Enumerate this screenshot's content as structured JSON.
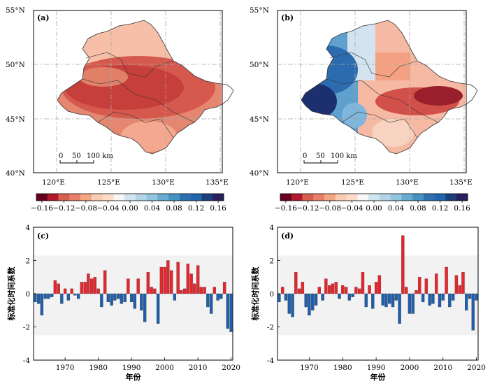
{
  "colors": {
    "positive_bar": "#e8252c",
    "negative_bar": "#1f5eab",
    "frame": "#000000",
    "grid": "#a8a8a8",
    "colorbar": [
      "#67001f",
      "#b2182b",
      "#d6604d",
      "#e7806a",
      "#f4a582",
      "#f9cdb3",
      "#fddbc7",
      "#f7f7f7",
      "#d1e5f0",
      "#b3d5e8",
      "#92c5de",
      "#6aabd2",
      "#4393c3",
      "#2d6fb1",
      "#2166ac",
      "#1a3f7a",
      "#2a1f5c"
    ]
  },
  "maps": [
    {
      "label": "(a)",
      "lat_ticks": [
        "55°N",
        "50°N",
        "45°N",
        "40°N"
      ],
      "lon_ticks": [
        "120°E",
        "125°E",
        "130°E",
        "135°E"
      ],
      "scale_bar": [
        "0",
        "50",
        "100 km"
      ]
    },
    {
      "label": "(b)",
      "lat_ticks": [
        "55°N",
        "50°N",
        "45°N",
        "40°N"
      ],
      "lon_ticks": [
        "120°E",
        "125°E",
        "130°E",
        "135°E"
      ],
      "scale_bar": [
        "0",
        "50",
        "100 km"
      ]
    }
  ],
  "colorbar_ticks": [
    "−0.16",
    "−0.12",
    "−0.08",
    "−0.04",
    "0.00",
    "0.04",
    "0.08",
    "0.12",
    "0.16"
  ],
  "chart_data": [
    {
      "type": "bar",
      "label": "(c)",
      "xlabel": "年份",
      "ylabel": "标准化时间系数",
      "xlim": [
        1961,
        2020
      ],
      "ylim": [
        -4,
        4
      ],
      "x_ticks": [
        1970,
        1980,
        1990,
        2000,
        2010,
        2020
      ],
      "y_ticks": [
        4,
        2,
        0,
        -2,
        -4
      ],
      "x": [
        1961,
        1962,
        1963,
        1964,
        1965,
        1966,
        1967,
        1968,
        1969,
        1970,
        1971,
        1972,
        1973,
        1974,
        1975,
        1976,
        1977,
        1978,
        1979,
        1980,
        1981,
        1982,
        1983,
        1984,
        1985,
        1986,
        1987,
        1988,
        1989,
        1990,
        1991,
        1992,
        1993,
        1994,
        1995,
        1996,
        1997,
        1998,
        1999,
        2000,
        2001,
        2002,
        2003,
        2004,
        2005,
        2006,
        2007,
        2008,
        2009,
        2010,
        2011,
        2012,
        2013,
        2014,
        2015,
        2016,
        2017,
        2018,
        2019,
        2020
      ],
      "values": [
        -0.5,
        -0.6,
        -1.3,
        -0.3,
        -0.3,
        -0.2,
        0.8,
        0.6,
        -0.6,
        0.3,
        -0.4,
        0.3,
        -0.1,
        -0.3,
        0.7,
        0.7,
        1.2,
        0.9,
        1.0,
        0.3,
        -0.8,
        1.4,
        -0.5,
        -0.7,
        -0.4,
        -0.3,
        -0.6,
        -0.5,
        0.9,
        -0.5,
        -0.9,
        0.9,
        -1.0,
        -1.7,
        1.3,
        0.4,
        0.3,
        -1.8,
        1.6,
        1.6,
        2.0,
        1.4,
        -0.4,
        1.9,
        0.2,
        0.3,
        1.8,
        1.2,
        0.6,
        1.7,
        0.4,
        0.4,
        -0.8,
        -1.2,
        0.4,
        -0.4,
        -0.3,
        0.7,
        -2.1,
        -2.3
      ]
    },
    {
      "type": "bar",
      "label": "(d)",
      "xlabel": "年份",
      "ylabel": "标准化时间系数",
      "xlim": [
        1961,
        2020
      ],
      "ylim": [
        -4,
        4
      ],
      "x_ticks": [
        1970,
        1980,
        1990,
        2000,
        2010,
        2020
      ],
      "y_ticks": [
        4,
        2,
        0,
        -2,
        -4
      ],
      "x": [
        1961,
        1962,
        1963,
        1964,
        1965,
        1966,
        1967,
        1968,
        1969,
        1970,
        1971,
        1972,
        1973,
        1974,
        1975,
        1976,
        1977,
        1978,
        1979,
        1980,
        1981,
        1982,
        1983,
        1984,
        1985,
        1986,
        1987,
        1988,
        1989,
        1990,
        1991,
        1992,
        1993,
        1994,
        1995,
        1996,
        1997,
        1998,
        1999,
        2000,
        2001,
        2002,
        2003,
        2004,
        2005,
        2006,
        2007,
        2008,
        2009,
        2010,
        2011,
        2012,
        2013,
        2014,
        2015,
        2016,
        2017,
        2018,
        2019,
        2020
      ],
      "values": [
        -0.5,
        0.4,
        -0.4,
        -1.2,
        -1.4,
        1.3,
        0.3,
        0.7,
        -0.8,
        -1.3,
        -1.0,
        -0.7,
        0.4,
        -0.4,
        0.9,
        0.5,
        0.6,
        0.7,
        -0.3,
        0.5,
        0.4,
        -0.4,
        -0.2,
        0.4,
        0.3,
        1.3,
        -0.8,
        0.5,
        -0.9,
        0.7,
        1.1,
        -0.7,
        -0.8,
        -0.6,
        -0.8,
        -0.4,
        -1.8,
        3.5,
        0.4,
        -1.2,
        -1.2,
        0.2,
        1.0,
        -0.5,
        0.9,
        -0.7,
        -0.6,
        1.2,
        -0.8,
        -0.4,
        1.6,
        -0.8,
        -0.4,
        1.1,
        0.5,
        1.3,
        -1.0,
        -0.3,
        -2.2,
        -0.4
      ]
    }
  ]
}
